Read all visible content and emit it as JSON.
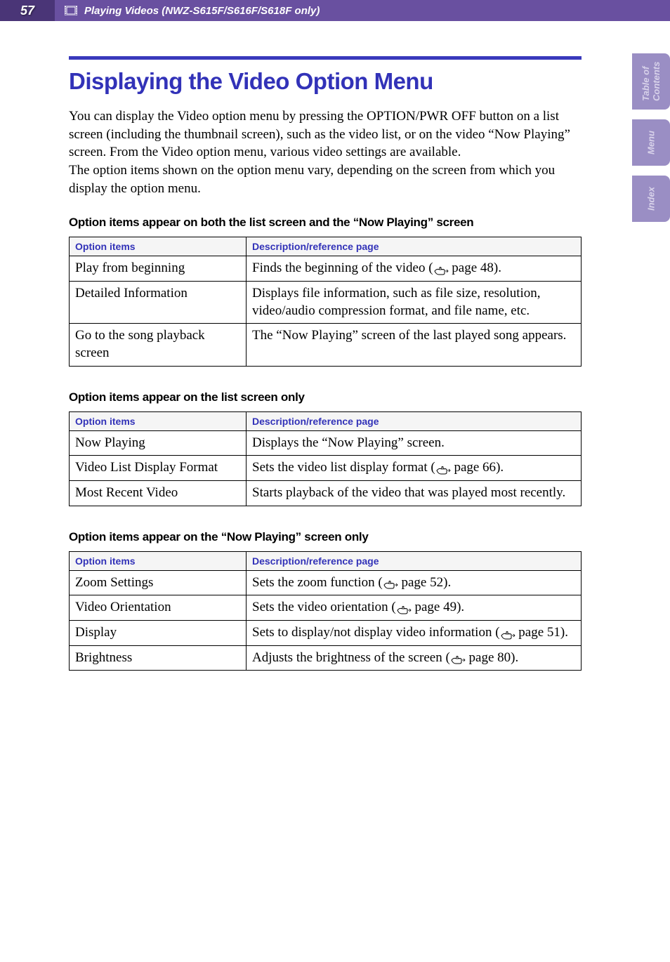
{
  "header": {
    "page_number": "57",
    "breadcrumb": "Playing Videos (NWZ-S615F/S616F/S618F only)",
    "bg_color": "#6950a0",
    "page_num_bg": "#4a3577"
  },
  "side_tabs": {
    "bg_color": "#9a8ec4",
    "text_color": "#d8d2ea",
    "items": [
      "Table of Contents",
      "Menu",
      "Index"
    ]
  },
  "accent_bar_color": "#3939bc",
  "h1_color": "#3232b8",
  "th_color": "#3232b8",
  "title": "Displaying the Video Option Menu",
  "intro": "You can display the Video option menu by pressing the OPTION/PWR OFF button on a list screen (including the thumbnail screen), such as the video list, or on the video “Now Playing” screen. From the Video option menu, various video settings are available.\nThe option items shown on the option menu vary, depending on the screen from which you display the option menu.",
  "table1": {
    "caption": "Option items appear on both the list screen and the “Now Playing” screen",
    "columns": [
      "Option items",
      "Description/reference page"
    ],
    "rows": [
      {
        "item": "Play from beginning",
        "desc_pre": "Finds the beginning of the video (",
        "page": "48",
        "desc_post": ")."
      },
      {
        "item": "Detailed Information",
        "desc_plain": "Displays file information, such as file size, resolution, video/audio compression format, and file name, etc."
      },
      {
        "item": "Go to the song playback screen",
        "desc_plain": "The “Now Playing” screen of the last played song appears."
      }
    ]
  },
  "table2": {
    "caption": "Option items appear on the list screen only",
    "columns": [
      "Option items",
      "Description/reference page"
    ],
    "rows": [
      {
        "item": "Now Playing",
        "desc_plain": "Displays the “Now Playing” screen."
      },
      {
        "item": "Video List Display Format",
        "desc_pre": "Sets the video list display format (",
        "page": "66",
        "desc_post": ")."
      },
      {
        "item": "Most Recent Video",
        "desc_plain": "Starts playback of the video that was played most recently."
      }
    ]
  },
  "table3": {
    "caption": "Option items appear on the “Now Playing” screen only",
    "columns": [
      "Option items",
      "Description/reference page"
    ],
    "rows": [
      {
        "item": "Zoom Settings",
        "desc_pre": "Sets the zoom function (",
        "page": "52",
        "desc_post": ")."
      },
      {
        "item": "Video Orientation",
        "desc_pre": "Sets the video orientation (",
        "page": "49",
        "desc_post": ")."
      },
      {
        "item": "Display",
        "desc_pre": "Sets to display/not display video information (",
        "page": "51",
        "desc_post": ")."
      },
      {
        "item": "Brightness",
        "desc_pre": "Adjusts the brightness of the screen (",
        "page": "80",
        "desc_post": ")."
      }
    ]
  },
  "page_label": " page "
}
